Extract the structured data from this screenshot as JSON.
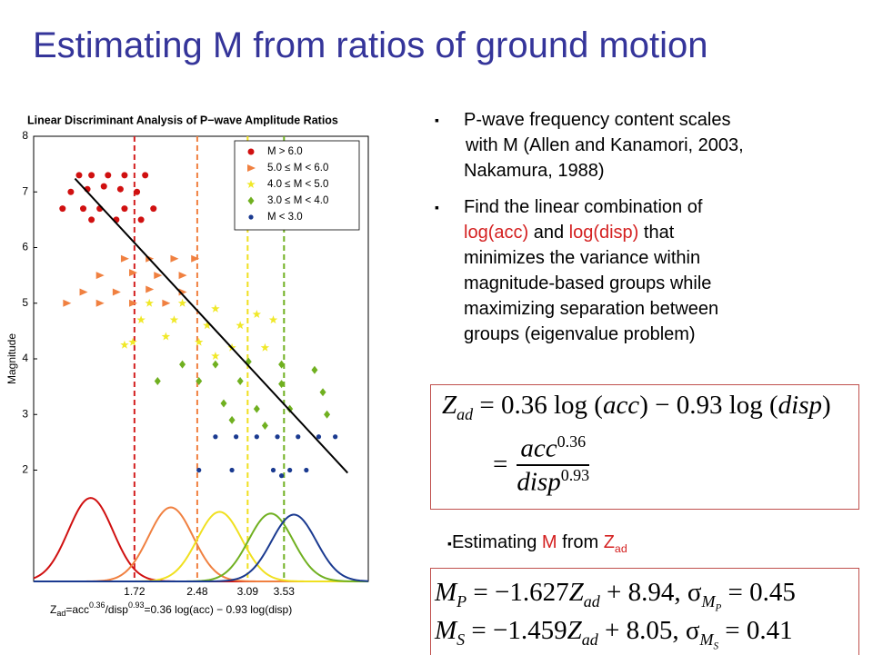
{
  "title": "Estimating M from ratios of ground motion",
  "bullets": [
    {
      "lines": [
        "P-wave frequency content scales",
        "with M (Allen and Kanamori, 2003,",
        "Nakamura, 1988)"
      ]
    },
    {
      "lines": [
        "Find the linear combination of",
        "log(acc)",
        " and ",
        "log(disp)",
        " that",
        "minimizes the variance within",
        "magnitude-based groups while",
        "maximizing separation between",
        "groups (eigenvalue problem)"
      ]
    }
  ],
  "equation_zad": {
    "line1": [
      "Z",
      "ad",
      " = 0.36 log (",
      "acc",
      ") − 0.93 log (",
      "disp",
      ")"
    ],
    "line2": [
      "=",
      "acc",
      "0.36",
      "disp",
      "0.93"
    ]
  },
  "estimating": [
    "Estimating ",
    "M",
    " from ",
    "Z",
    "ad"
  ],
  "equations_m": [
    [
      "M",
      "P",
      " = −1.627",
      "Z",
      "ad",
      " + 8.94, σ",
      "M",
      "P",
      " = 0.45"
    ],
    [
      "M",
      "S",
      " = −1.459",
      "Z",
      "ad",
      " + 8.05, σ",
      "M",
      "S",
      " = 0.41"
    ]
  ],
  "chart_data": {
    "type": "scatter",
    "title": "Linear Discriminant Analysis of P−wave Amplitude Ratios",
    "ylabel": "Magnitude",
    "xlabel": [
      "Z",
      "ad",
      "=acc",
      "0.36",
      "/disp",
      "0.93",
      "=0.36 log(acc) − 0.93 log(disp)"
    ],
    "xlim": [
      0.5,
      4.55
    ],
    "ylim": [
      0,
      8
    ],
    "xticks": [
      1.72,
      2.48,
      3.09,
      3.53
    ],
    "yticks": [
      2,
      3,
      4,
      5,
      6,
      7,
      8
    ],
    "xtick_line_colors": [
      "#d42020",
      "#f08040",
      "#f0e020",
      "#70b020"
    ],
    "grid": false,
    "legend": "upper right",
    "series": [
      {
        "name": "M > 6.0",
        "color": "#d01010",
        "marker": "circle",
        "x": [
          1.05,
          1.2,
          1.4,
          1.6,
          1.85,
          0.95,
          1.15,
          1.35,
          1.55,
          1.75,
          0.85,
          1.1,
          1.3,
          1.6,
          1.2,
          1.5,
          1.8,
          1.95
        ],
        "y": [
          7.3,
          7.3,
          7.3,
          7.3,
          7.3,
          7.0,
          7.05,
          7.1,
          7.05,
          7.0,
          6.7,
          6.7,
          6.7,
          6.7,
          6.5,
          6.5,
          6.5,
          6.7
        ]
      },
      {
        "name": "5.0 ≤ M < 6.0",
        "color": "#f08040",
        "marker": "triangle",
        "x": [
          1.6,
          1.9,
          2.2,
          2.45,
          1.3,
          1.7,
          2.0,
          2.3,
          1.1,
          1.5,
          1.9,
          2.3,
          0.9,
          1.3,
          1.7,
          2.1
        ],
        "y": [
          5.8,
          5.8,
          5.8,
          5.8,
          5.5,
          5.55,
          5.5,
          5.5,
          5.2,
          5.2,
          5.25,
          5.2,
          5.0,
          5.0,
          5.0,
          5.0
        ]
      },
      {
        "name": "4.0 ≤ M < 5.0",
        "color": "#f0e828",
        "marker": "star",
        "x": [
          1.9,
          2.3,
          2.7,
          3.2,
          1.8,
          2.2,
          2.6,
          3.0,
          3.4,
          1.7,
          2.1,
          2.5,
          2.9,
          3.3,
          1.6,
          2.7
        ],
        "y": [
          5.0,
          5.0,
          4.9,
          4.8,
          4.7,
          4.7,
          4.6,
          4.6,
          4.7,
          4.3,
          4.4,
          4.3,
          4.2,
          4.2,
          4.25,
          4.05
        ]
      },
      {
        "name": "3.0 ≤ M < 4.0",
        "color": "#70b020",
        "marker": "diamond",
        "x": [
          2.3,
          2.7,
          3.1,
          3.5,
          3.9,
          2.0,
          2.5,
          3.0,
          3.5,
          4.0,
          2.8,
          3.2,
          3.6,
          4.05,
          2.9,
          3.3
        ],
        "y": [
          3.9,
          3.9,
          3.95,
          3.9,
          3.8,
          3.6,
          3.6,
          3.6,
          3.55,
          3.4,
          3.2,
          3.1,
          3.1,
          3.0,
          2.9,
          2.8
        ]
      },
      {
        "name": "M < 3.0",
        "color": "#1a3a90",
        "marker": "dot",
        "x": [
          2.7,
          2.95,
          3.2,
          3.45,
          3.7,
          3.95,
          4.15,
          2.5,
          2.9,
          3.4,
          3.6,
          3.8,
          3.5
        ],
        "y": [
          2.6,
          2.6,
          2.6,
          2.6,
          2.6,
          2.6,
          2.6,
          2.0,
          2.0,
          2.0,
          2.0,
          2.0,
          1.9
        ]
      }
    ],
    "curves": [
      {
        "color": "#d01010",
        "mean": 1.19,
        "peak": 1.5,
        "sd": 0.27
      },
      {
        "color": "#f08040",
        "mean": 2.16,
        "peak": 1.33,
        "sd": 0.27
      },
      {
        "color": "#f0e020",
        "mean": 2.75,
        "peak": 1.25,
        "sd": 0.27
      },
      {
        "color": "#70b020",
        "mean": 3.37,
        "peak": 1.22,
        "sd": 0.27
      },
      {
        "color": "#1a3a90",
        "mean": 3.65,
        "peak": 1.2,
        "sd": 0.27
      }
    ],
    "fit_line": {
      "color": "#000000",
      "x": [
        1.0,
        4.3
      ],
      "y": [
        7.24,
        1.95
      ]
    }
  }
}
